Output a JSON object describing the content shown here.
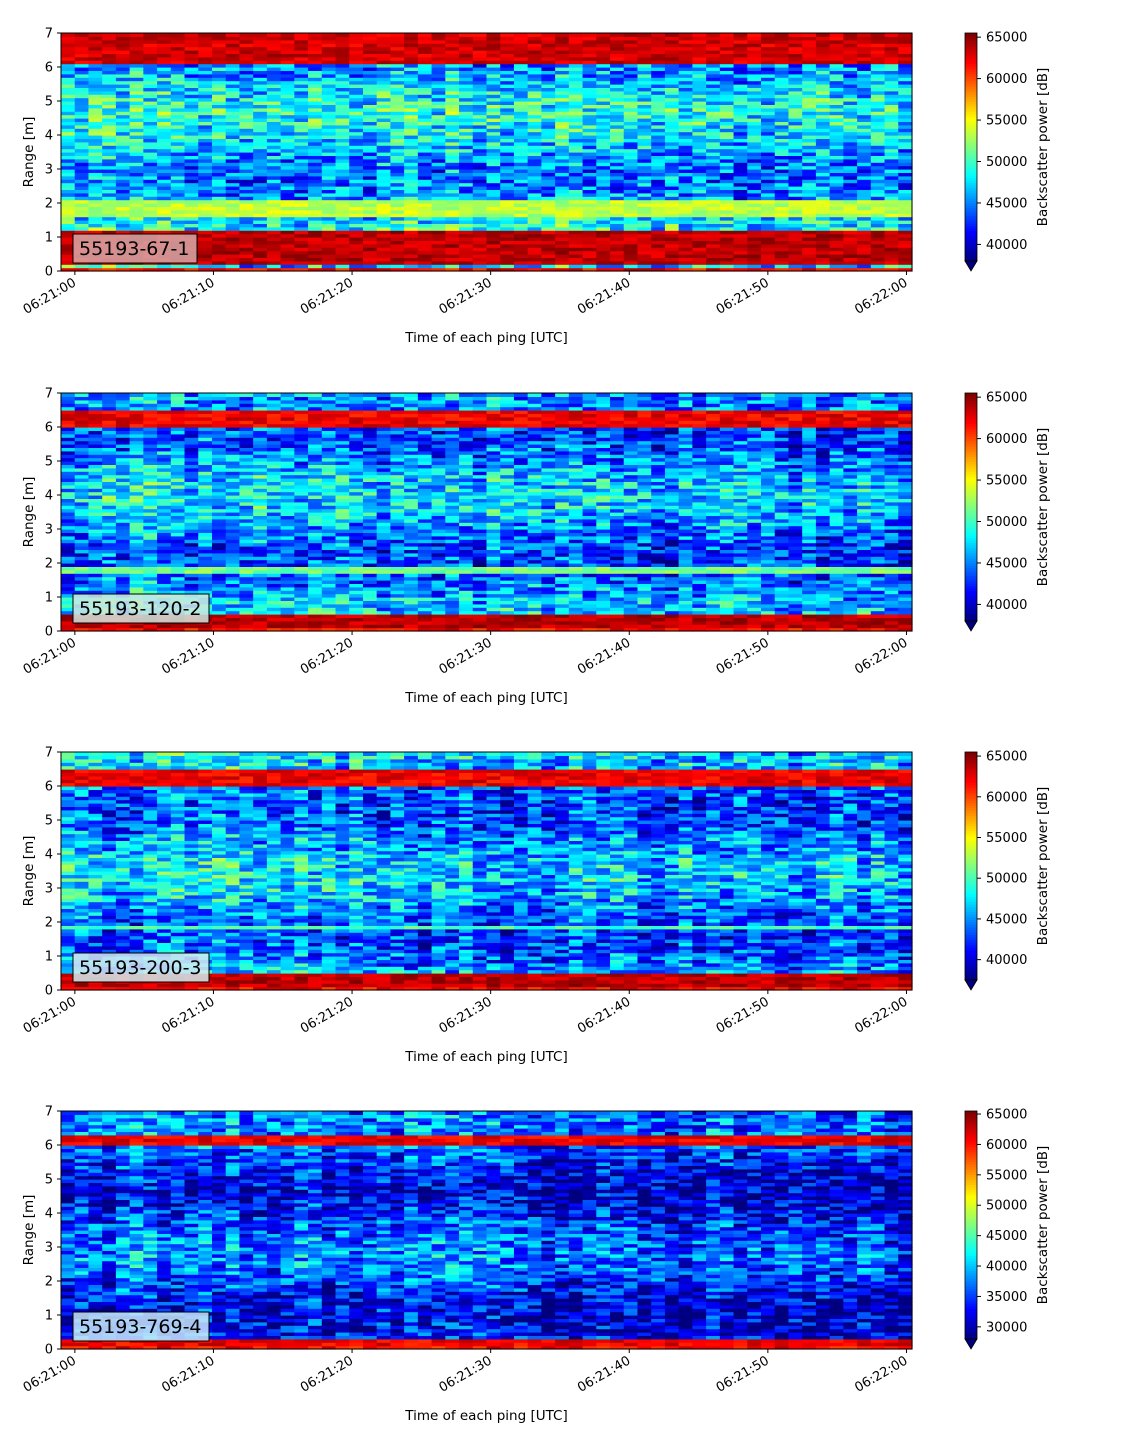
{
  "colors": {
    "background": "#ffffff",
    "axis": "#000000",
    "label_box_edge": "#000000"
  },
  "colormap": "jet",
  "colormap_stops": [
    "#00007f",
    "#0000ff",
    "#007fff",
    "#00ffff",
    "#7fff7f",
    "#ffff00",
    "#ff7f00",
    "#ff0000",
    "#7f0000"
  ],
  "chart_data": [
    {
      "type": "heatmap",
      "label": "55193-67-1",
      "xlabel": "Time of each ping [UTC]",
      "ylabel": "Range [m]",
      "x_ticks": [
        "06:21:00",
        "06:21:10",
        "06:21:20",
        "06:21:30",
        "06:21:40",
        "06:21:50",
        "06:22:00"
      ],
      "x_range": [
        "06:20:59",
        "06:22:00.4"
      ],
      "y_ticks": [
        0,
        1,
        2,
        3,
        4,
        5,
        6,
        7
      ],
      "ylim": [
        0,
        7
      ],
      "colorbar_label": "Backscatter power [dB]",
      "colorbar_ticks": [
        40000,
        45000,
        50000,
        55000,
        60000,
        65000
      ],
      "clim": [
        38000,
        65500
      ],
      "colorbar_extend": "min",
      "label_box_color": "#d9a8a8",
      "features": [
        {
          "range_m": [
            0.25,
            1.15
          ],
          "level": 1.0
        },
        {
          "range_m": [
            1.6,
            2.1
          ],
          "level": 0.62
        },
        {
          "range_m": [
            6.1,
            7.0
          ],
          "level": 0.98
        }
      ],
      "background_level": 0.35
    },
    {
      "type": "heatmap",
      "label": "55193-120-2",
      "xlabel": "Time of each ping [UTC]",
      "ylabel": "Range [m]",
      "x_ticks": [
        "06:21:00",
        "06:21:10",
        "06:21:20",
        "06:21:30",
        "06:21:40",
        "06:21:50",
        "06:22:00"
      ],
      "x_range": [
        "06:20:59",
        "06:22:00.4"
      ],
      "y_ticks": [
        0,
        1,
        2,
        3,
        4,
        5,
        6,
        7
      ],
      "ylim": [
        0,
        7
      ],
      "colorbar_label": "Backscatter power [dB]",
      "colorbar_ticks": [
        40000,
        45000,
        50000,
        55000,
        60000,
        65000
      ],
      "clim": [
        38000,
        65500
      ],
      "colorbar_extend": "min",
      "label_box_color": "#cfe8e0",
      "features": [
        {
          "range_m": [
            0.1,
            0.5
          ],
          "level": 1.0
        },
        {
          "range_m": [
            1.75,
            1.95
          ],
          "level": 0.55
        },
        {
          "range_m": [
            6.0,
            6.5
          ],
          "level": 0.95
        }
      ],
      "background_level": 0.3
    },
    {
      "type": "heatmap",
      "label": "55193-200-3",
      "xlabel": "Time of each ping [UTC]",
      "ylabel": "Range [m]",
      "x_ticks": [
        "06:21:00",
        "06:21:10",
        "06:21:20",
        "06:21:30",
        "06:21:40",
        "06:21:50",
        "06:22:00"
      ],
      "x_range": [
        "06:20:59",
        "06:22:00.4"
      ],
      "y_ticks": [
        0,
        1,
        2,
        3,
        4,
        5,
        6,
        7
      ],
      "ylim": [
        0,
        7
      ],
      "colorbar_label": "Backscatter power [dB]",
      "colorbar_ticks": [
        40000,
        45000,
        50000,
        55000,
        60000,
        65000
      ],
      "clim": [
        37500,
        65500
      ],
      "colorbar_extend": "min",
      "label_box_color": "#d6ecf0",
      "features": [
        {
          "range_m": [
            0.15,
            0.45
          ],
          "level": 1.0
        },
        {
          "range_m": [
            1.8,
            1.95
          ],
          "level": 0.5
        },
        {
          "range_m": [
            6.0,
            6.5
          ],
          "level": 0.95
        }
      ],
      "background_level": 0.3
    },
    {
      "type": "heatmap",
      "label": "55193-769-4",
      "xlabel": "Time of each ping [UTC]",
      "ylabel": "Range [m]",
      "x_ticks": [
        "06:21:00",
        "06:21:10",
        "06:21:20",
        "06:21:30",
        "06:21:40",
        "06:21:50",
        "06:22:00"
      ],
      "x_range": [
        "06:20:59",
        "06:22:00.4"
      ],
      "y_ticks": [
        0,
        1,
        2,
        3,
        4,
        5,
        6,
        7
      ],
      "ylim": [
        0,
        7
      ],
      "colorbar_label": "Backscatter power [dB]",
      "colorbar_ticks": [
        30000,
        35000,
        40000,
        45000,
        50000,
        55000,
        60000,
        65000
      ],
      "clim": [
        28000,
        65500
      ],
      "colorbar_extend": "min",
      "label_box_color": "#c8e8f8",
      "features": [
        {
          "range_m": [
            0.15,
            0.35
          ],
          "level": 0.95
        },
        {
          "range_m": [
            6.05,
            6.3
          ],
          "level": 0.95
        }
      ],
      "background_level": 0.2
    }
  ]
}
